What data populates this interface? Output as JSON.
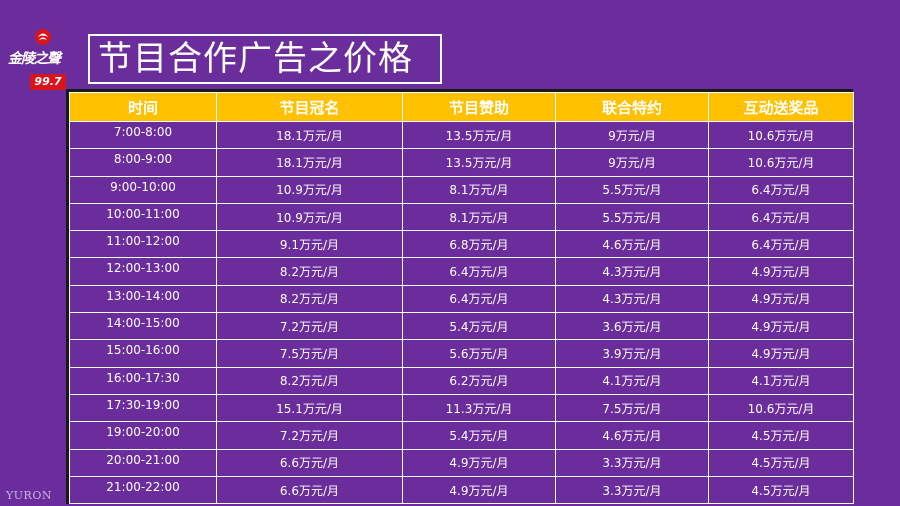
{
  "logo": {
    "brand": "金陵之聲",
    "frequency": "99.7"
  },
  "page_title": "节目合作广告之价格",
  "table": {
    "headers": [
      "时间",
      "节目冠名",
      "节目赞助",
      "联合特约",
      "互动送奖品"
    ],
    "rows": [
      [
        "7:00-8:00",
        "18.1万元/月",
        "13.5万元/月",
        "9万元/月",
        "10.6万元/月"
      ],
      [
        "8:00-9:00",
        "18.1万元/月",
        "13.5万元/月",
        "9万元/月",
        "10.6万元/月"
      ],
      [
        "9:00-10:00",
        "10.9万元/月",
        "8.1万元/月",
        "5.5万元/月",
        "6.4万元/月"
      ],
      [
        "10:00-11:00",
        "10.9万元/月",
        "8.1万元/月",
        "5.5万元/月",
        "6.4万元/月"
      ],
      [
        "11:00-12:00",
        "9.1万元/月",
        "6.8万元/月",
        "4.6万元/月",
        "6.4万元/月"
      ],
      [
        "12:00-13:00",
        "8.2万元/月",
        "6.4万元/月",
        "4.3万元/月",
        "4.9万元/月"
      ],
      [
        "13:00-14:00",
        "8.2万元/月",
        "6.4万元/月",
        "4.3万元/月",
        "4.9万元/月"
      ],
      [
        "14:00-15:00",
        "7.2万元/月",
        "5.4万元/月",
        "3.6万元/月",
        "4.9万元/月"
      ],
      [
        "15:00-16:00",
        "7.5万元/月",
        "5.6万元/月",
        "3.9万元/月",
        "4.9万元/月"
      ],
      [
        "16:00-17:30",
        "8.2万元/月",
        "6.2万元/月",
        "4.1万元/月",
        "4.1万元/月"
      ],
      [
        "17:30-19:00",
        "15.1万元/月",
        "11.3万元/月",
        "7.5万元/月",
        "10.6万元/月"
      ],
      [
        "19:00-20:00",
        "7.2万元/月",
        "5.4万元/月",
        "4.6万元/月",
        "4.5万元/月"
      ],
      [
        "20:00-21:00",
        "6.6万元/月",
        "4.9万元/月",
        "3.3万元/月",
        "4.5万元/月"
      ],
      [
        "21:00-22:00",
        "6.6万元/月",
        "4.9万元/月",
        "3.3万元/月",
        "4.5万元/月"
      ]
    ]
  },
  "watermark": "YURON",
  "colors": {
    "background": "#6b2d9b",
    "header": "#ffc000",
    "logo_red": "#d8141c"
  }
}
